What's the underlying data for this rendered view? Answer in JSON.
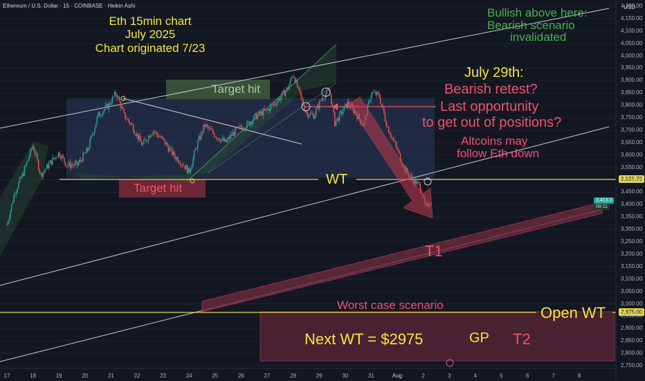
{
  "header": {
    "title": "Ethereum / U.S. Dollar · 15 · COINBASE · Heikin Ashi",
    "currency": "USD"
  },
  "annotations": {
    "chart_title": [
      "Eth 15min chart",
      "July 2025",
      "Chart originated 7/23"
    ],
    "bullish_note": [
      "Bullish above here:",
      "Bearish scenario",
      "invalidated"
    ],
    "target_hit_top": "Target hit",
    "target_hit_bottom": "Target hit",
    "july29": "July 29th:",
    "bearish_retest": "Bearish retest?",
    "last_opportunity": "Last opportunity",
    "get_out": "to get out of positions?",
    "altcoins": [
      "Altcoins may",
      "follow Eth down"
    ],
    "wt": "WT",
    "t1": "T1",
    "worst_case": "Worst case scenario",
    "open_wt": "Open WT",
    "next_wt": "Next WT = $2975",
    "gp": "GP",
    "t2": "T2"
  },
  "price_tags": {
    "wt_tag": "3,525.75",
    "current_tag": "3,413.0",
    "current_sub": "08:11",
    "open_wt_tag": "2,975.00"
  },
  "colors": {
    "background": "#131722",
    "up": "#26a69a",
    "down": "#ef5350",
    "wt_line": "#e7d84a",
    "annotation_red": "#f0526c",
    "annotation_green": "#4caf50",
    "title_yellow": "#f5e642"
  },
  "chart_data": {
    "type": "candlestick",
    "instrument": "Ethereum / U.S. Dollar",
    "timeframe": "15",
    "exchange": "COINBASE",
    "style": "Heikin Ashi",
    "y_axis_ticks": [
      4200,
      4150,
      4100,
      4050,
      4000,
      3950,
      3900,
      3850,
      3800,
      3750,
      3700,
      3650,
      3600,
      3550,
      3500,
      3450,
      3400,
      3350,
      3300,
      3250,
      3200,
      3150,
      3100,
      3050,
      3000,
      2950,
      2900,
      2850,
      2800,
      2750
    ],
    "x_axis_ticks": [
      "17",
      "18",
      "19",
      "20",
      "21",
      "22",
      "23",
      "24",
      "25",
      "26",
      "27",
      "28",
      "29",
      "30",
      "31",
      "Aug",
      "2",
      "3",
      "4",
      "5",
      "6",
      "7",
      "8"
    ],
    "ylim": [
      2730,
      4230
    ],
    "price_path": [
      [
        17.0,
        3320
      ],
      [
        17.3,
        3450
      ],
      [
        17.6,
        3520
      ],
      [
        18.0,
        3640
      ],
      [
        18.3,
        3520
      ],
      [
        18.6,
        3560
      ],
      [
        19.0,
        3610
      ],
      [
        19.3,
        3560
      ],
      [
        19.7,
        3560
      ],
      [
        20.1,
        3620
      ],
      [
        20.5,
        3760
      ],
      [
        20.9,
        3800
      ],
      [
        21.2,
        3850
      ],
      [
        21.5,
        3760
      ],
      [
        21.8,
        3720
      ],
      [
        22.2,
        3640
      ],
      [
        22.6,
        3700
      ],
      [
        23.0,
        3660
      ],
      [
        23.4,
        3600
      ],
      [
        23.8,
        3560
      ],
      [
        24.0,
        3530
      ],
      [
        24.3,
        3640
      ],
      [
        24.6,
        3720
      ],
      [
        25.0,
        3680
      ],
      [
        25.4,
        3650
      ],
      [
        25.8,
        3700
      ],
      [
        26.2,
        3720
      ],
      [
        26.6,
        3760
      ],
      [
        27.0,
        3780
      ],
      [
        27.4,
        3820
      ],
      [
        27.8,
        3870
      ],
      [
        28.0,
        3930
      ],
      [
        28.2,
        3860
      ],
      [
        28.5,
        3770
      ],
      [
        28.8,
        3760
      ],
      [
        29.1,
        3830
      ],
      [
        29.4,
        3860
      ],
      [
        29.6,
        3730
      ],
      [
        29.8,
        3760
      ],
      [
        30.1,
        3810
      ],
      [
        30.4,
        3770
      ],
      [
        30.7,
        3720
      ],
      [
        31.0,
        3850
      ],
      [
        31.3,
        3840
      ],
      [
        31.6,
        3720
      ],
      [
        32.0,
        3620
      ],
      [
        32.3,
        3540
      ],
      [
        32.6,
        3500
      ],
      [
        32.9,
        3470
      ],
      [
        33.1,
        3380
      ],
      [
        33.3,
        3420
      ]
    ],
    "levels": {
      "wt": 3525.75,
      "open_wt": 2975.0,
      "bullish_invalidation_channel_top": true
    }
  }
}
